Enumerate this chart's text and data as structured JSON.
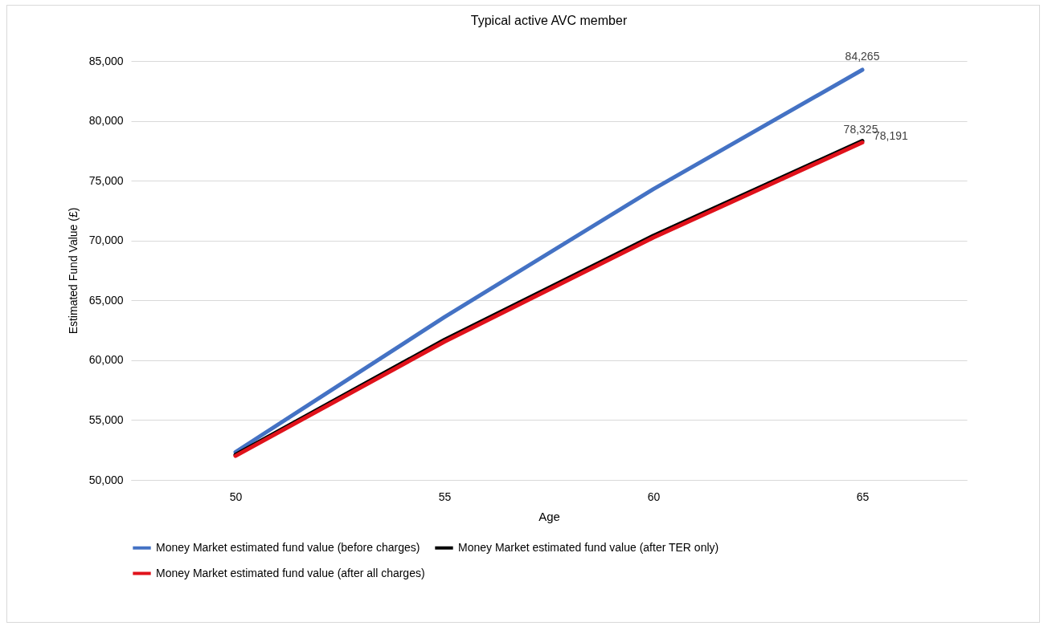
{
  "chart_data": {
    "type": "line",
    "title": "Typical active AVC member",
    "xlabel": "Age",
    "ylabel": "Estimated Fund Value (£)",
    "categories": [
      "50",
      "55",
      "60",
      "65"
    ],
    "series": [
      {
        "name": "Money Market estimated fund value (before charges)",
        "color": "#4472c4",
        "values": [
          52330,
          63600,
          74300,
          84265
        ],
        "value_labels": [
          null,
          null,
          null,
          "84,265"
        ]
      },
      {
        "name": "Money Market estimated fund value (after TER only)",
        "color": "#000000",
        "values": [
          52100,
          61700,
          70400,
          78325
        ],
        "value_labels": [
          null,
          null,
          null,
          "78,325"
        ]
      },
      {
        "name": "Money Market estimated fund value (after all charges)",
        "color": "#e0121b",
        "values": [
          52000,
          61550,
          70250,
          78191
        ],
        "value_labels": [
          null,
          null,
          null,
          "78,191"
        ]
      }
    ],
    "ylim": [
      50000,
      85000
    ],
    "yticks": [
      {
        "value": 50000,
        "label": "50,000"
      },
      {
        "value": 55000,
        "label": "55,000"
      },
      {
        "value": 60000,
        "label": "60,000"
      },
      {
        "value": 65000,
        "label": "65,000"
      },
      {
        "value": 70000,
        "label": "70,000"
      },
      {
        "value": 75000,
        "label": "75,000"
      },
      {
        "value": 80000,
        "label": "80,000"
      },
      {
        "value": 85000,
        "label": "85,000"
      }
    ],
    "grid": "y",
    "legend": "bottom",
    "marker": "none",
    "line_style": "solid"
  }
}
